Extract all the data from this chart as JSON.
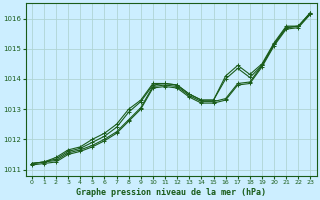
{
  "title": "Graphe pression niveau de la mer (hPa)",
  "background_color": "#cceeff",
  "grid_color": "#b0d4d4",
  "line_color": "#1a5c1a",
  "xlim": [
    -0.5,
    23.5
  ],
  "ylim": [
    1010.8,
    1016.5
  ],
  "yticks": [
    1011,
    1012,
    1013,
    1014,
    1015,
    1016
  ],
  "xticks": [
    0,
    1,
    2,
    3,
    4,
    5,
    6,
    7,
    8,
    9,
    10,
    11,
    12,
    13,
    14,
    15,
    16,
    17,
    18,
    19,
    20,
    21,
    22,
    23
  ],
  "series": [
    [
      1011.2,
      1011.25,
      1011.3,
      1011.55,
      1011.65,
      1011.8,
      1012.0,
      1012.25,
      1012.65,
      1013.05,
      1013.75,
      1013.8,
      1013.75,
      1013.45,
      1013.25,
      1013.25,
      1013.35,
      1013.85,
      1013.9,
      1014.45,
      1015.15,
      1015.7,
      1015.75,
      1016.2
    ],
    [
      1011.2,
      1011.25,
      1011.35,
      1011.6,
      1011.7,
      1011.9,
      1012.1,
      1012.4,
      1012.9,
      1013.25,
      1013.8,
      1013.85,
      1013.8,
      1013.5,
      1013.3,
      1013.3,
      1014.0,
      1014.35,
      1014.05,
      1014.45,
      1015.15,
      1015.7,
      1015.75,
      1016.15
    ],
    [
      1011.2,
      1011.25,
      1011.4,
      1011.65,
      1011.75,
      1012.0,
      1012.2,
      1012.5,
      1013.0,
      1013.3,
      1013.85,
      1013.85,
      1013.8,
      1013.5,
      1013.3,
      1013.3,
      1014.1,
      1014.45,
      1014.15,
      1014.5,
      1015.2,
      1015.75,
      1015.75,
      1016.2
    ],
    [
      1011.15,
      1011.2,
      1011.25,
      1011.5,
      1011.6,
      1011.75,
      1011.95,
      1012.2,
      1012.6,
      1013.0,
      1013.7,
      1013.75,
      1013.7,
      1013.4,
      1013.2,
      1013.2,
      1013.3,
      1013.8,
      1013.85,
      1014.4,
      1015.1,
      1015.65,
      1015.7,
      1016.15
    ]
  ]
}
